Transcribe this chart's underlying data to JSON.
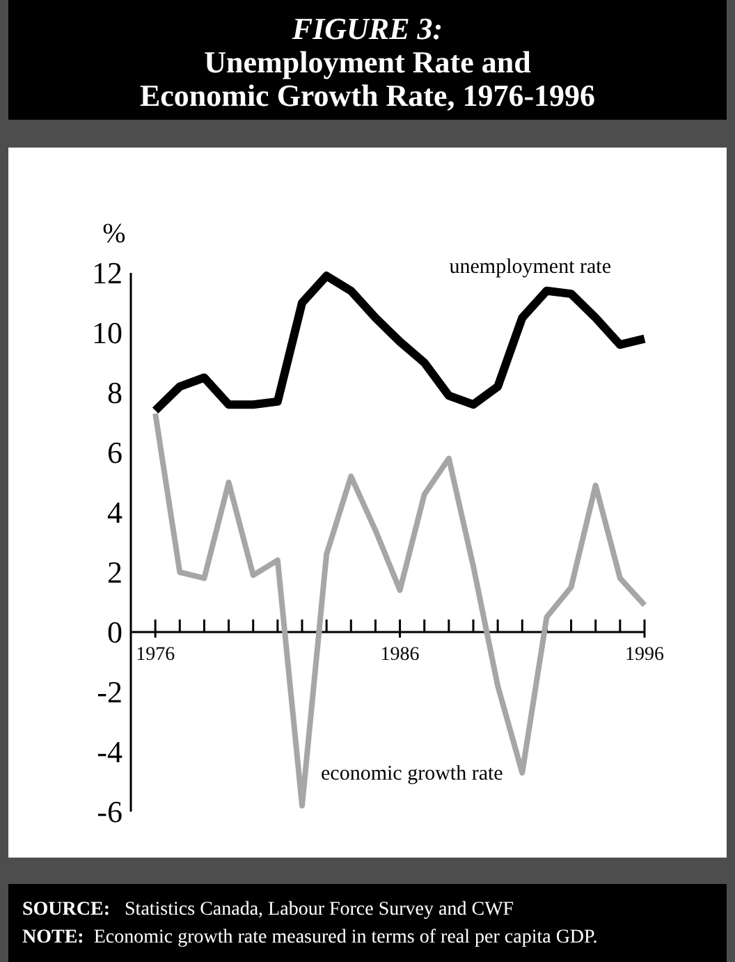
{
  "chart_data": {
    "type": "line",
    "title": "FIGURE 3:",
    "subtitle": "Unemployment Rate and Economic Growth Rate, 1976-1996",
    "ylabel": "%",
    "x": [
      1976,
      1977,
      1978,
      1979,
      1980,
      1981,
      1982,
      1983,
      1984,
      1985,
      1986,
      1987,
      1988,
      1989,
      1990,
      1991,
      1992,
      1993,
      1994,
      1995,
      1996
    ],
    "series": [
      {
        "name": "unemployment rate",
        "color": "#000000",
        "values": [
          7.4,
          8.2,
          8.5,
          7.6,
          7.6,
          7.7,
          11.0,
          11.9,
          11.4,
          10.5,
          9.7,
          9.0,
          7.9,
          7.6,
          8.2,
          10.5,
          11.4,
          11.3,
          10.5,
          9.6,
          9.8
        ]
      },
      {
        "name": "economic growth rate",
        "color": "#a6a6a6",
        "values": [
          7.3,
          2.0,
          1.8,
          5.0,
          1.9,
          2.4,
          -5.8,
          2.6,
          5.2,
          3.4,
          1.4,
          4.6,
          5.8,
          2.2,
          -1.8,
          -4.7,
          0.5,
          1.5,
          4.9,
          1.8,
          0.9
        ]
      }
    ],
    "xlim": [
      1975,
      1996
    ],
    "xticks": [
      1976,
      {
        "value": 1977,
        "label": null
      },
      {
        "value": 1978,
        "label": null
      },
      {
        "value": 1979,
        "label": null
      },
      {
        "value": 1980,
        "label": null
      },
      {
        "value": 1981,
        "label": null
      },
      {
        "value": 1982,
        "label": null
      },
      {
        "value": 1983,
        "label": null
      },
      {
        "value": 1984,
        "label": null
      },
      {
        "value": 1985,
        "label": null
      },
      1986,
      {
        "value": 1987,
        "label": null
      },
      {
        "value": 1988,
        "label": null
      },
      {
        "value": 1989,
        "label": null
      },
      {
        "value": 1990,
        "label": null
      },
      {
        "value": 1991,
        "label": null
      },
      {
        "value": 1992,
        "label": null
      },
      {
        "value": 1993,
        "label": null
      },
      {
        "value": 1994,
        "label": null
      },
      {
        "value": 1995,
        "label": null
      },
      1996
    ],
    "ylim": [
      -6,
      12
    ],
    "yticks": [
      -6,
      -4,
      -2,
      0,
      2,
      4,
      6,
      8,
      10,
      12
    ],
    "grid": false,
    "legend": false,
    "marker": "none",
    "line_style": "solid",
    "annotations": [
      "SOURCE:   Statistics Canada, Labour Force Survey and CWF",
      "NOTE:  Economic growth rate measured in terms of real per capita GDP."
    ]
  }
}
